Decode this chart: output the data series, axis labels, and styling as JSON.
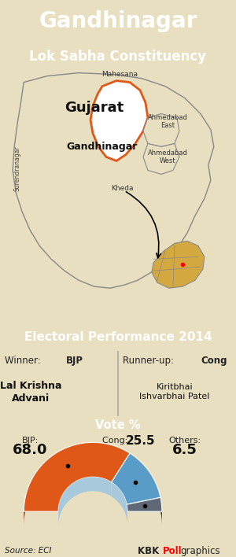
{
  "title": "Gandhinagar",
  "subtitle": "Lok Sabha Constituency",
  "title_bg": "#1f7a8c",
  "subtitle_bg": "#2a9aac",
  "map_bg": "#e8dfc0",
  "electoral_title": "Electoral Performance 2014",
  "electoral_bg": "#1f7a8c",
  "info_bg": "#cde0ee",
  "vote_header_bg": "#4a8faa",
  "chart_bg": "#a8c8dc",
  "winner_party": "BJP",
  "runner_party": "Cong",
  "winner_name": "Lal Krishna\nAdvani",
  "runner_name": "Kiritbhai\nIshvarbhai Patel",
  "bjp_pct": 68.0,
  "cong_pct": 25.5,
  "others_pct": 6.5,
  "bjp_color": "#e05818",
  "bjp_dark": "#903010",
  "cong_color": "#5a9cc8",
  "cong_dark": "#2a5a88",
  "others_color": "#606878",
  "others_dark": "#303840",
  "source_text": "Source: ECI",
  "brand_kbk": "KBK ",
  "brand_poll": "Poll",
  "brand_graphics": "graphics",
  "divider_color": "#aaaaaa",
  "border_color": "#888888",
  "gujarat_fill": "#e8dfc0",
  "gandhinagar_fill": "#ffffff",
  "gandhinagar_border": "#e05818",
  "inset_fill": "#d4a840",
  "inset_border": "#888888"
}
